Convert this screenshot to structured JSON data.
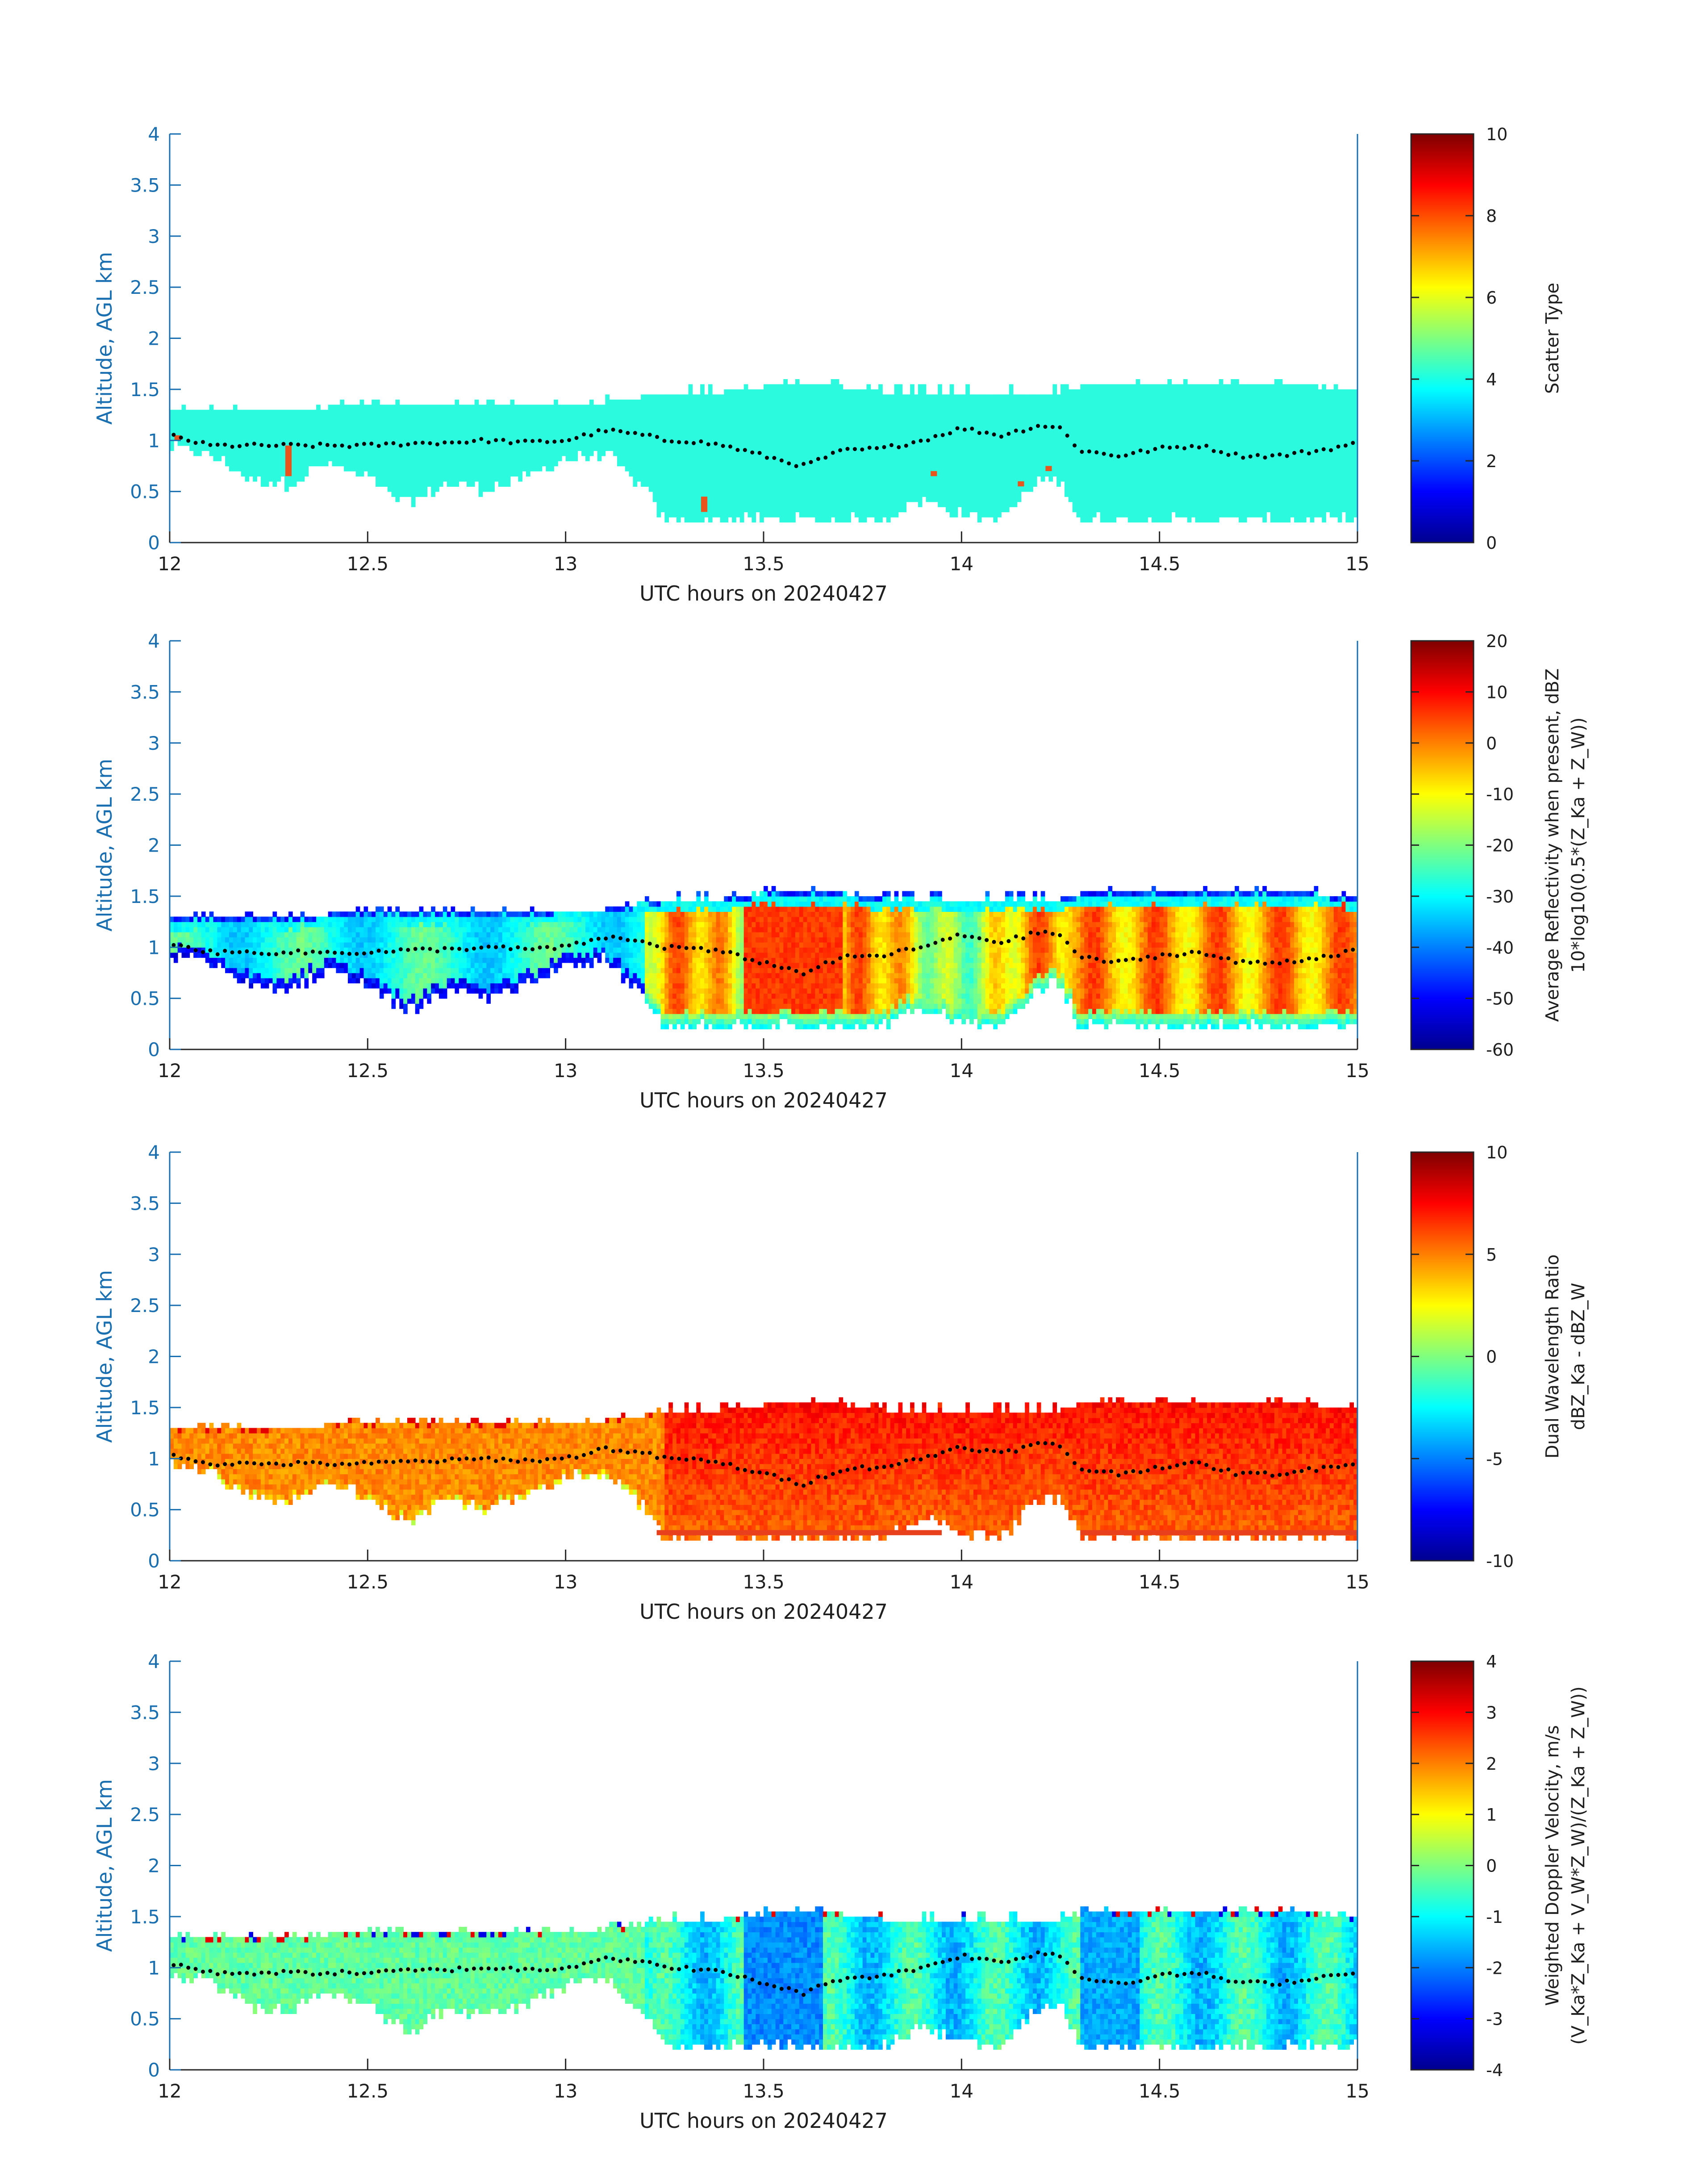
{
  "chart_data": [
    {
      "type": "heatmap",
      "title": "",
      "xlabel": "UTC hours on 20240427",
      "ylabel": "Altitude, AGL km",
      "xlim": [
        12,
        15
      ],
      "ylim": [
        0,
        4
      ],
      "xticks": [
        "12",
        "12.5",
        "13",
        "13.5",
        "14",
        "14.5",
        "15"
      ],
      "yticks": [
        "0",
        "0.5",
        "1",
        "1.5",
        "2",
        "2.5",
        "3",
        "3.5",
        "4"
      ],
      "colorbar": {
        "label_lines": [
          "Scatter Type"
        ],
        "range": [
          0,
          10
        ],
        "ticks": [
          "0",
          "2",
          "4",
          "6",
          "8",
          "10"
        ],
        "colormap": "jet"
      },
      "field": "scatter_type",
      "overlay": "black dotted line near cloud mid-level"
    },
    {
      "type": "heatmap",
      "title": "",
      "xlabel": "UTC hours on 20240427",
      "ylabel": "Altitude, AGL km",
      "xlim": [
        12,
        15
      ],
      "ylim": [
        0,
        4
      ],
      "xticks": [
        "12",
        "12.5",
        "13",
        "13.5",
        "14",
        "14.5",
        "15"
      ],
      "yticks": [
        "0",
        "0.5",
        "1",
        "1.5",
        "2",
        "2.5",
        "3",
        "3.5",
        "4"
      ],
      "colorbar": {
        "label_lines": [
          "Average Reflectivity when present, dBZ",
          "10*log10(0.5*(Z_Ka + Z_W))"
        ],
        "range": [
          -60,
          20
        ],
        "ticks": [
          "-60",
          "-50",
          "-40",
          "-30",
          "-20",
          "-10",
          "0",
          "10",
          "20"
        ],
        "colormap": "jet"
      },
      "field": "reflectivity",
      "overlay": "black dotted line near cloud mid-level"
    },
    {
      "type": "heatmap",
      "title": "",
      "xlabel": "UTC hours on 20240427",
      "ylabel": "Altitude, AGL km",
      "xlim": [
        12,
        15
      ],
      "ylim": [
        0,
        4
      ],
      "xticks": [
        "12",
        "12.5",
        "13",
        "13.5",
        "14",
        "14.5",
        "15"
      ],
      "yticks": [
        "0",
        "0.5",
        "1",
        "1.5",
        "2",
        "2.5",
        "3",
        "3.5",
        "4"
      ],
      "colorbar": {
        "label_lines": [
          "Dual Wavelength Ratio",
          "dBZ_Ka - dBZ_W"
        ],
        "range": [
          -10,
          10
        ],
        "ticks": [
          "-10",
          "-5",
          "0",
          "5",
          "10"
        ],
        "colormap": "jet"
      },
      "field": "dwr",
      "overlay": "black dotted line near cloud mid-level"
    },
    {
      "type": "heatmap",
      "title": "",
      "xlabel": "UTC hours on 20240427",
      "ylabel": "Altitude, AGL km",
      "xlim": [
        12,
        15
      ],
      "ylim": [
        0,
        4
      ],
      "xticks": [
        "12",
        "12.5",
        "13",
        "13.5",
        "14",
        "14.5",
        "15"
      ],
      "yticks": [
        "0",
        "0.5",
        "1",
        "1.5",
        "2",
        "2.5",
        "3",
        "3.5",
        "4"
      ],
      "colorbar": {
        "label_lines": [
          "Weighted Doppler Velocity, m/s",
          "(V_Ka*Z_Ka + V_W*Z_W)/(Z_Ka + Z_W))"
        ],
        "range": [
          -4,
          4
        ],
        "ticks": [
          "-4",
          "-3",
          "-2",
          "-1",
          "0",
          "1",
          "2",
          "3",
          "4"
        ],
        "colormap": "jet"
      },
      "field": "velocity",
      "overlay": "black dotted line near cloud mid-level"
    }
  ],
  "cloud_profile": {
    "x": [
      12.0,
      12.1,
      12.2,
      12.3,
      12.4,
      12.5,
      12.6,
      12.7,
      12.8,
      12.9,
      13.0,
      13.1,
      13.2,
      13.25,
      13.3,
      13.4,
      13.5,
      13.6,
      13.7,
      13.8,
      13.9,
      14.0,
      14.1,
      14.2,
      14.25,
      14.3,
      14.4,
      14.5,
      14.6,
      14.7,
      14.8,
      14.9,
      15.0
    ],
    "top_km": [
      1.3,
      1.3,
      1.3,
      1.3,
      1.35,
      1.35,
      1.35,
      1.35,
      1.35,
      1.35,
      1.4,
      1.4,
      1.45,
      1.5,
      1.5,
      1.5,
      1.55,
      1.55,
      1.55,
      1.5,
      1.5,
      1.5,
      1.5,
      1.5,
      1.5,
      1.55,
      1.55,
      1.55,
      1.55,
      1.55,
      1.55,
      1.55,
      1.5
    ],
    "base_km": [
      0.9,
      0.85,
      0.6,
      0.55,
      0.75,
      0.6,
      0.35,
      0.55,
      0.5,
      0.6,
      0.8,
      0.85,
      0.5,
      0.2,
      0.2,
      0.2,
      0.2,
      0.2,
      0.2,
      0.2,
      0.4,
      0.25,
      0.2,
      0.6,
      0.6,
      0.2,
      0.2,
      0.2,
      0.2,
      0.2,
      0.2,
      0.2,
      0.2
    ],
    "dotted_line_km": [
      1.05,
      0.95,
      0.95,
      0.95,
      0.95,
      0.95,
      0.97,
      0.98,
      1.0,
      0.98,
      1.0,
      1.1,
      1.05,
      1.0,
      1.0,
      0.95,
      0.85,
      0.75,
      0.9,
      0.92,
      1.0,
      1.12,
      1.05,
      1.15,
      1.12,
      0.9,
      0.85,
      0.92,
      0.95,
      0.85,
      0.85,
      0.9,
      0.97
    ]
  },
  "colors": {
    "axis": "#1a6fb0",
    "text": "#1f1f1f",
    "scatter_fill": "#2bfadf",
    "scatter_anomaly": "#e8541c",
    "overlay": "#000000"
  }
}
